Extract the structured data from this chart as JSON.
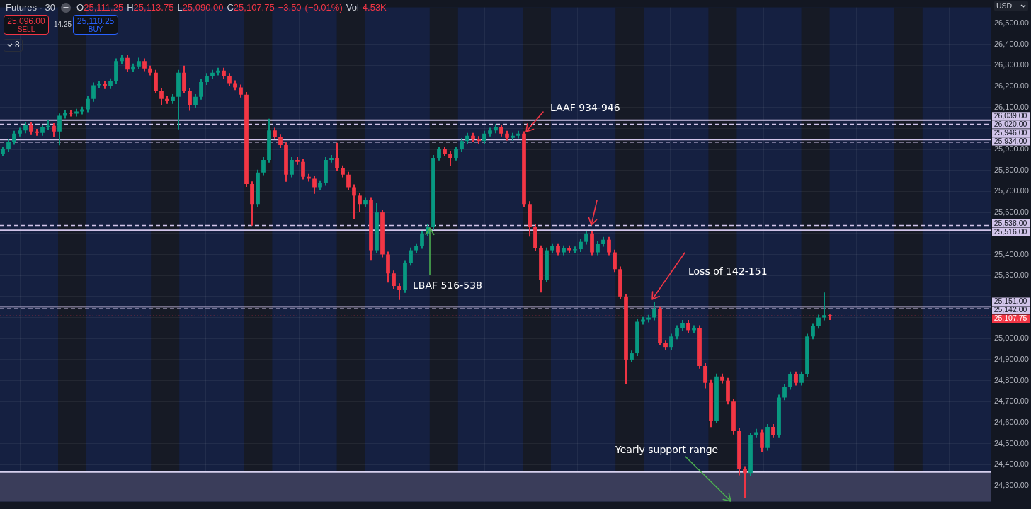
{
  "chart_data": {
    "type": "candlestick",
    "title": "Futures · 30",
    "subtitle": "O25,111.25 H25,113.75 L25,090.00 C25,107.75 −3.50 (−0.01%) Vol 4.53K",
    "categories": [
      null,
      null,
      null,
      null,
      null,
      null,
      null,
      null,
      null,
      null,
      null,
      null,
      null,
      null,
      null,
      null,
      null,
      null,
      null,
      null,
      null,
      null,
      null,
      null,
      null,
      null,
      null,
      null,
      null,
      null,
      null,
      null,
      null,
      null,
      null,
      null,
      null,
      null,
      null,
      null,
      null,
      null,
      null,
      null,
      null,
      null,
      null,
      null,
      null,
      null,
      null,
      null,
      null,
      null,
      null,
      null,
      null,
      null,
      null,
      null,
      null,
      null,
      null,
      null,
      null,
      null,
      null,
      null,
      null,
      null,
      null,
      null,
      null,
      null,
      null,
      null,
      null,
      null,
      null,
      null,
      null,
      null,
      null,
      null,
      null,
      null,
      null,
      null,
      null,
      null,
      null,
      null,
      null,
      null,
      null,
      null,
      null,
      null,
      null,
      null,
      null,
      null,
      null,
      null,
      null,
      null,
      null,
      null,
      null,
      null,
      null,
      null,
      null,
      null,
      null,
      null,
      null,
      null,
      null,
      null,
      null,
      null,
      null,
      null,
      null,
      null,
      null,
      null,
      null,
      null,
      null,
      null,
      null,
      null,
      null,
      null,
      null,
      null,
      null,
      null,
      null,
      null,
      null,
      null,
      null,
      null,
      null,
      null,
      null,
      null,
      null,
      null,
      null,
      null,
      null,
      null,
      null,
      null,
      null,
      null,
      null,
      null,
      null,
      null,
      null,
      null,
      null,
      null,
      null,
      null,
      null,
      null,
      null,
      null,
      null
    ],
    "ohlc": [
      [
        25880,
        25912,
        25870,
        25900
      ],
      [
        25900,
        25947,
        25888,
        25935
      ],
      [
        25935,
        25987,
        25923,
        25975
      ],
      [
        25975,
        26002,
        25963,
        25990
      ],
      [
        25990,
        26030,
        25978,
        26015
      ],
      [
        26015,
        26027,
        25973,
        25985
      ],
      [
        25985,
        25997,
        25966,
        25978
      ],
      [
        25978,
        26017,
        25966,
        26005
      ],
      [
        26005,
        26040,
        25993,
        26012
      ],
      [
        26012,
        26024,
        25960,
        25985
      ],
      [
        25985,
        26070,
        25921,
        26060
      ],
      [
        26060,
        26087,
        26048,
        26075
      ],
      [
        26075,
        26087,
        26058,
        26070
      ],
      [
        26070,
        26092,
        26058,
        26080
      ],
      [
        26080,
        26102,
        26068,
        26090
      ],
      [
        26090,
        26152,
        26078,
        26140
      ],
      [
        26140,
        26217,
        26128,
        26205
      ],
      [
        26205,
        26222,
        26193,
        26210
      ],
      [
        26210,
        26222,
        26188,
        26200
      ],
      [
        26200,
        26237,
        26188,
        26225
      ],
      [
        26225,
        26332,
        26213,
        26320
      ],
      [
        26320,
        26350,
        26308,
        26335
      ],
      [
        26335,
        26347,
        26268,
        26280
      ],
      [
        26280,
        26307,
        26268,
        26295
      ],
      [
        26295,
        26335,
        26283,
        26320
      ],
      [
        26320,
        26332,
        26273,
        26285
      ],
      [
        26285,
        26297,
        26253,
        26265
      ],
      [
        26265,
        26277,
        26168,
        26180
      ],
      [
        26180,
        26192,
        26110,
        26140
      ],
      [
        26140,
        26152,
        26118,
        26130
      ],
      [
        26130,
        26162,
        26118,
        26150
      ],
      [
        26150,
        26277,
        25996,
        26265
      ],
      [
        26265,
        26297,
        26168,
        26180
      ],
      [
        26180,
        26192,
        26085,
        26110
      ],
      [
        26110,
        26162,
        26098,
        26150
      ],
      [
        26150,
        26232,
        26138,
        26220
      ],
      [
        26220,
        26262,
        26208,
        26250
      ],
      [
        26250,
        26277,
        26238,
        26265
      ],
      [
        26265,
        26287,
        26253,
        26275
      ],
      [
        26275,
        26287,
        26238,
        26250
      ],
      [
        26250,
        26262,
        26203,
        26215
      ],
      [
        26215,
        26227,
        26183,
        26195
      ],
      [
        26195,
        26207,
        26148,
        26160
      ],
      [
        26160,
        26172,
        25723,
        25735
      ],
      [
        25735,
        25747,
        25538,
        25640
      ],
      [
        25640,
        25802,
        25628,
        25790
      ],
      [
        25790,
        25862,
        25778,
        25850
      ],
      [
        25850,
        26045,
        25838,
        25990
      ],
      [
        25990,
        26002,
        25948,
        25960
      ],
      [
        25960,
        25972,
        25908,
        25920
      ],
      [
        25920,
        25932,
        25747,
        25780
      ],
      [
        25780,
        25862,
        25768,
        25850
      ],
      [
        25850,
        25862,
        25828,
        25840
      ],
      [
        25840,
        25852,
        25758,
        25770
      ],
      [
        25770,
        25782,
        25748,
        25760
      ],
      [
        25760,
        25772,
        25690,
        25720
      ],
      [
        25720,
        25752,
        25708,
        25740
      ],
      [
        25740,
        25862,
        25728,
        25850
      ],
      [
        25850,
        25872,
        25838,
        25860
      ],
      [
        25860,
        25930,
        25798,
        25810
      ],
      [
        25810,
        25822,
        25768,
        25780
      ],
      [
        25780,
        25792,
        25708,
        25720
      ],
      [
        25720,
        25732,
        25571,
        25680
      ],
      [
        25680,
        25692,
        25603,
        25640
      ],
      [
        25640,
        25672,
        25628,
        25660
      ],
      [
        25660,
        25672,
        25375,
        25420
      ],
      [
        25420,
        25643,
        25408,
        25600
      ],
      [
        25600,
        25612,
        25388,
        25400
      ],
      [
        25400,
        25412,
        25267,
        25310
      ],
      [
        25310,
        25322,
        25238,
        25250
      ],
      [
        25250,
        25262,
        25185,
        25230
      ],
      [
        25230,
        25372,
        25218,
        25360
      ],
      [
        25360,
        25432,
        25348,
        25420
      ],
      [
        25420,
        25452,
        25408,
        25440
      ],
      [
        25440,
        25512,
        25428,
        25500
      ],
      [
        25500,
        25542,
        25488,
        25530
      ],
      [
        25530,
        25872,
        25518,
        25860
      ],
      [
        25860,
        25912,
        25848,
        25900
      ],
      [
        25900,
        25912,
        25868,
        25880
      ],
      [
        25880,
        25892,
        25822,
        25860
      ],
      [
        25860,
        25912,
        25848,
        25900
      ],
      [
        25900,
        25952,
        25888,
        25940
      ],
      [
        25940,
        25977,
        25928,
        25965
      ],
      [
        25965,
        25977,
        25938,
        25950
      ],
      [
        25950,
        25962,
        25928,
        25940
      ],
      [
        25940,
        25987,
        25928,
        25975
      ],
      [
        25975,
        26002,
        25963,
        25990
      ],
      [
        25990,
        26019,
        25978,
        26005
      ],
      [
        26005,
        26017,
        25963,
        25975
      ],
      [
        25975,
        25987,
        25943,
        25955
      ],
      [
        25955,
        25977,
        25943,
        25965
      ],
      [
        25965,
        25987,
        25953,
        25975
      ],
      [
        25975,
        25985,
        25628,
        25640
      ],
      [
        25640,
        25652,
        25486,
        25530
      ],
      [
        25530,
        25542,
        25418,
        25430
      ],
      [
        25430,
        25442,
        25220,
        25280
      ],
      [
        25280,
        25432,
        25268,
        25420
      ],
      [
        25420,
        25452,
        25408,
        25440
      ],
      [
        25440,
        25452,
        25398,
        25410
      ],
      [
        25410,
        25442,
        25398,
        25430
      ],
      [
        25430,
        25442,
        25408,
        25420
      ],
      [
        25420,
        25437,
        25408,
        25425
      ],
      [
        25425,
        25472,
        25413,
        25460
      ],
      [
        25460,
        25512,
        25448,
        25500
      ],
      [
        25500,
        25512,
        25398,
        25410
      ],
      [
        25410,
        25462,
        25398,
        25450
      ],
      [
        25450,
        25482,
        25438,
        25470
      ],
      [
        25470,
        25482,
        25398,
        25410
      ],
      [
        25410,
        25422,
        25318,
        25330
      ],
      [
        25330,
        25342,
        25188,
        25200
      ],
      [
        25200,
        25212,
        24785,
        24900
      ],
      [
        24900,
        24942,
        24888,
        24930
      ],
      [
        24930,
        25092,
        24918,
        25080
      ],
      [
        25080,
        25102,
        25068,
        25090
      ],
      [
        25090,
        25112,
        25078,
        25100
      ],
      [
        25100,
        25175,
        25088,
        25140
      ],
      [
        25140,
        25152,
        24968,
        24980
      ],
      [
        24980,
        24992,
        24948,
        24960
      ],
      [
        24960,
        25022,
        24948,
        25010
      ],
      [
        25010,
        25062,
        24998,
        25050
      ],
      [
        25050,
        25087,
        25038,
        25075
      ],
      [
        25075,
        25087,
        25028,
        25040
      ],
      [
        25040,
        25062,
        25028,
        25050
      ],
      [
        25050,
        25062,
        24858,
        24870
      ],
      [
        24870,
        24882,
        24765,
        24790
      ],
      [
        24790,
        24802,
        24580,
        24610
      ],
      [
        24610,
        24832,
        24598,
        24820
      ],
      [
        24820,
        24832,
        24788,
        24800
      ],
      [
        24800,
        24812,
        24688,
        24700
      ],
      [
        24700,
        24712,
        24545,
        24560
      ],
      [
        24560,
        24572,
        24350,
        24380
      ],
      [
        24380,
        24392,
        24243,
        24360
      ],
      [
        24360,
        24552,
        24348,
        24540
      ],
      [
        24540,
        24570,
        24528,
        24555
      ],
      [
        24555,
        24567,
        24460,
        24480
      ],
      [
        24480,
        24592,
        24468,
        24580
      ],
      [
        24580,
        24592,
        24528,
        24540
      ],
      [
        24540,
        24732,
        24528,
        24720
      ],
      [
        24720,
        24782,
        24708,
        24770
      ],
      [
        24770,
        24842,
        24758,
        24830
      ],
      [
        24830,
        24842,
        24778,
        24790
      ],
      [
        24790,
        24842,
        24778,
        24830
      ],
      [
        24830,
        25022,
        24818,
        25010
      ],
      [
        25010,
        25072,
        24998,
        25060
      ],
      [
        25060,
        25113,
        25048,
        25100
      ],
      [
        25100,
        25218,
        25088,
        25111.25
      ],
      [
        25111.25,
        25113.75,
        25090,
        25107.75
      ],
      null,
      null,
      null,
      null,
      null,
      null,
      null,
      null,
      null,
      null,
      null,
      null,
      null,
      null,
      null,
      null,
      null,
      null,
      null,
      null,
      null,
      null,
      null,
      null,
      null,
      null,
      null,
      null
    ],
    "colors": [
      "#089981",
      "#089981",
      "#089981",
      "#089981",
      "#089981",
      "#f23645",
      "#f23645",
      "#089981",
      "#089981",
      "#f23645",
      "#089981",
      "#089981",
      "#f23645",
      "#089981",
      "#089981",
      "#089981",
      "#089981",
      "#089981",
      "#f23645",
      "#089981",
      "#089981",
      "#089981",
      "#f23645",
      "#089981",
      "#089981",
      "#f23645",
      "#f23645",
      "#f23645",
      "#f23645",
      "#f23645",
      "#089981",
      "#089981",
      "#f23645",
      "#f23645",
      "#089981",
      "#089981",
      "#089981",
      "#089981",
      "#089981",
      "#f23645",
      "#f23645",
      "#f23645",
      "#f23645",
      "#f23645",
      "#f23645",
      "#089981",
      "#089981",
      "#089981",
      "#f23645",
      "#f23645",
      "#f23645",
      "#089981",
      "#f23645",
      "#f23645",
      "#f23645",
      "#f23645",
      "#089981",
      "#089981",
      "#089981",
      "#f23645",
      "#f23645",
      "#f23645",
      "#f23645",
      "#f23645",
      "#089981",
      "#f23645",
      "#089981",
      "#f23645",
      "#f23645",
      "#f23645",
      "#f23645",
      "#089981",
      "#089981",
      "#089981",
      "#089981",
      "#089981",
      "#089981",
      "#089981",
      "#f23645",
      "#f23645",
      "#089981",
      "#089981",
      "#089981",
      "#f23645",
      "#f23645",
      "#089981",
      "#089981",
      "#089981",
      "#f23645",
      "#f23645",
      "#089981",
      "#089981",
      "#f23645",
      "#f23645",
      "#f23645",
      "#f23645",
      "#089981",
      "#089981",
      "#f23645",
      "#089981",
      "#f23645",
      "#089981",
      "#089981",
      "#089981",
      "#f23645",
      "#089981",
      "#089981",
      "#f23645",
      "#f23645",
      "#f23645",
      "#f23645",
      "#089981",
      "#089981",
      "#089981",
      "#089981",
      "#089981",
      "#f23645",
      "#f23645",
      "#089981",
      "#089981",
      "#089981",
      "#f23645",
      "#089981",
      "#f23645",
      "#f23645",
      "#f23645",
      "#089981",
      "#f23645",
      "#f23645",
      "#f23645",
      "#f23645",
      "#f23645",
      "#089981",
      "#089981",
      "#f23645",
      "#089981",
      "#f23645",
      "#089981",
      "#089981",
      "#089981",
      "#f23645",
      "#089981",
      "#089981",
      "#089981",
      "#089981",
      "#089981",
      "#f23645",
      null,
      null,
      null,
      null,
      null,
      null,
      null,
      null,
      null,
      null,
      null,
      null,
      null,
      null,
      null,
      null,
      null,
      null,
      null,
      null,
      null,
      null,
      null,
      null,
      null,
      null,
      null,
      null
    ],
    "ylim": [
      24225,
      26575
    ],
    "yticks": [
      {
        "value": 24300,
        "label": "24,300.00"
      },
      {
        "value": 24400,
        "label": "24,400.00"
      },
      {
        "value": 24500,
        "label": "24,500.00"
      },
      {
        "value": 24600,
        "label": "24,600.00"
      },
      {
        "value": 24700,
        "label": "24,700.00"
      },
      {
        "value": 24800,
        "label": "24,800.00"
      },
      {
        "value": 24900,
        "label": "24,900.00"
      },
      {
        "value": 25000,
        "label": "25,000.00"
      },
      {
        "value": 25100,
        "label": null
      },
      {
        "value": 25200,
        "label": null
      },
      {
        "value": 25300,
        "label": "25,300.00"
      },
      {
        "value": 25400,
        "label": "25,400.00"
      },
      {
        "value": 25500,
        "label": null
      },
      {
        "value": 25600,
        "label": "25,600.00"
      },
      {
        "value": 25700,
        "label": "25,700.00"
      },
      {
        "value": 25800,
        "label": "25,800.00"
      },
      {
        "value": 25900,
        "label": "25,900.00"
      },
      {
        "value": 26000,
        "label": null
      },
      {
        "value": 26100,
        "label": "26,100.00"
      },
      {
        "value": 26200,
        "label": "26,200.00"
      },
      {
        "value": 26300,
        "label": "26,300.00"
      },
      {
        "value": 26400,
        "label": "26,400.00"
      },
      {
        "value": 26500,
        "label": "26,500.00"
      }
    ],
    "grid": true,
    "tick_labels": "y",
    "ref_lines": [
      {
        "axis": "y",
        "value": 26039,
        "label": "26,039.00",
        "color": "#d1c4e9",
        "line_style": "solid"
      },
      {
        "axis": "y",
        "value": 26020,
        "label": "26,020.00",
        "color": "#d1c4e9",
        "line_style": "dashed"
      },
      {
        "axis": "y",
        "value": 25946,
        "label": "25,946.00",
        "color": "#d1c4e9",
        "line_style": "solid"
      },
      {
        "axis": "y",
        "value": 25934,
        "label": "25,934.00",
        "color": "#d1c4e9",
        "line_style": "dashed"
      },
      {
        "axis": "y",
        "value": 25538,
        "label": "25,538.00",
        "color": "#d1c4e9",
        "line_style": "dashed"
      },
      {
        "axis": "y",
        "value": 25516,
        "label": "25,516.00",
        "color": "#d1c4e9",
        "line_style": "solid"
      },
      {
        "axis": "y",
        "value": 25151,
        "label": "25,151.00",
        "color": "#d1c4e9",
        "line_style": "solid"
      },
      {
        "axis": "y",
        "value": 25142,
        "label": "25,142.00",
        "color": "#d1c4e9",
        "line_style": "dashed"
      },
      {
        "axis": "y",
        "value": 25107.75,
        "label": "25,107.75",
        "color": "#f23645",
        "line_style": "dotted"
      },
      {
        "axis": "y",
        "value": 24365,
        "color": "#d6d0ee",
        "line_style": "solid"
      }
    ],
    "bands": [
      {
        "axis": "y",
        "from": 24225,
        "to": 24365,
        "color": "#3a3d5a"
      }
    ],
    "annotations": [
      "25,096.00",
      "SELL",
      "14.25",
      "25,110.25",
      "BUY",
      "8",
      "USD",
      "LAAF 934-946",
      "LBAF 516-538",
      "Loss of 142-151",
      "Yearly support range"
    ]
  }
}
